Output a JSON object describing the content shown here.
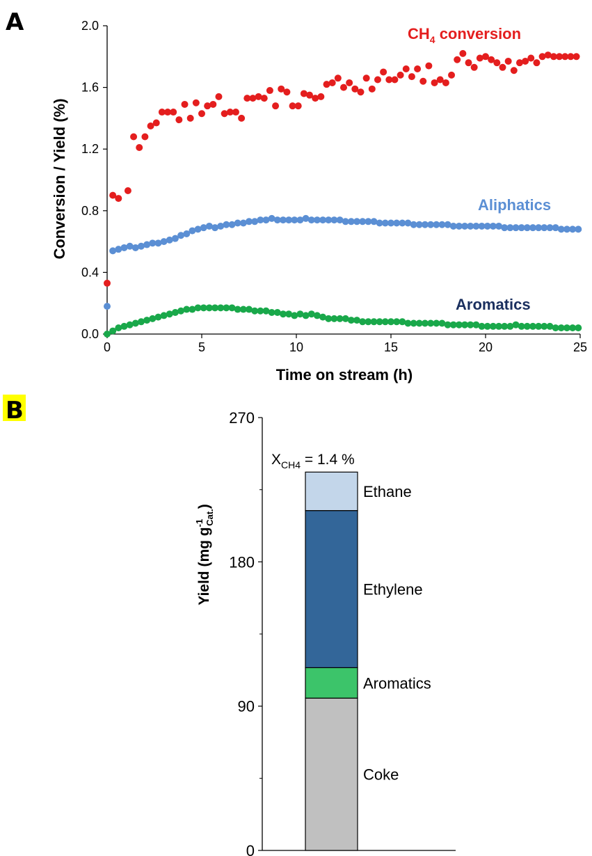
{
  "panels": {
    "a_label": "A",
    "b_label": "B"
  },
  "colors": {
    "ch4": "#e41e1e",
    "aliphatics": "#5b8fd4",
    "aromatics_series": "#19a84a",
    "aromatics_label": "#1a2f5e",
    "ethane": "#c3d6ea",
    "ethylene": "#336699",
    "aromatics_bar": "#3cc46a",
    "coke": "#c0c0c0",
    "highlight_b": "#ffff00"
  },
  "chart_data": [
    {
      "type": "scatter",
      "xlabel": "Time on stream (h)",
      "ylabel": "Conversion / Yield (%)",
      "xlim": [
        0,
        25
      ],
      "ylim": [
        0,
        2.0
      ],
      "xticks": [
        0,
        5,
        10,
        15,
        20,
        25
      ],
      "yticks": [
        "0.0",
        "0.4",
        "0.8",
        "1.2",
        "1.6",
        "2.0"
      ],
      "series": [
        {
          "name": "CH4 conversion",
          "name_main": "CH",
          "name_sub": "4",
          "name_rest": " conversion",
          "color": "#e41e1e",
          "x": [
            0,
            0.3,
            0.6,
            1.1,
            1.4,
            1.7,
            2.0,
            2.3,
            2.6,
            2.9,
            3.2,
            3.5,
            3.8,
            4.1,
            4.4,
            4.7,
            5.0,
            5.3,
            5.6,
            5.9,
            6.2,
            6.5,
            6.8,
            7.1,
            7.4,
            7.7,
            8.0,
            8.3,
            8.6,
            8.9,
            9.2,
            9.5,
            9.8,
            10.1,
            10.4,
            10.7,
            11.0,
            11.3,
            11.6,
            11.9,
            12.2,
            12.5,
            12.8,
            13.1,
            13.4,
            13.7,
            14.0,
            14.3,
            14.6,
            14.9,
            15.2,
            15.5,
            15.8,
            16.1,
            16.4,
            16.7,
            17.0,
            17.3,
            17.6,
            17.9,
            18.2,
            18.5,
            18.8,
            19.1,
            19.4,
            19.7,
            20.0,
            20.3,
            20.6,
            20.9,
            21.2,
            21.5,
            21.8,
            22.1,
            22.4,
            22.7,
            23.0,
            23.3,
            23.6,
            23.9,
            24.2,
            24.5,
            24.8
          ],
          "values": [
            0.33,
            0.9,
            0.88,
            0.93,
            1.28,
            1.21,
            1.28,
            1.35,
            1.37,
            1.44,
            1.44,
            1.44,
            1.39,
            1.49,
            1.4,
            1.5,
            1.43,
            1.48,
            1.49,
            1.54,
            1.43,
            1.44,
            1.44,
            1.4,
            1.53,
            1.53,
            1.54,
            1.53,
            1.58,
            1.48,
            1.59,
            1.57,
            1.48,
            1.48,
            1.56,
            1.55,
            1.53,
            1.54,
            1.62,
            1.63,
            1.66,
            1.6,
            1.63,
            1.59,
            1.57,
            1.66,
            1.59,
            1.65,
            1.7,
            1.65,
            1.65,
            1.68,
            1.72,
            1.67,
            1.72,
            1.64,
            1.74,
            1.63,
            1.65,
            1.63,
            1.68,
            1.78,
            1.82,
            1.76,
            1.73,
            1.79,
            1.8,
            1.78,
            1.76,
            1.73,
            1.77,
            1.71,
            1.76,
            1.77,
            1.79,
            1.76,
            1.8,
            1.81,
            1.8,
            1.8,
            1.8,
            1.8,
            1.8
          ]
        },
        {
          "name": "Aliphatics",
          "color": "#5b8fd4",
          "x": [
            0,
            0.3,
            0.6,
            0.9,
            1.2,
            1.5,
            1.8,
            2.1,
            2.4,
            2.7,
            3.0,
            3.3,
            3.6,
            3.9,
            4.2,
            4.5,
            4.8,
            5.1,
            5.4,
            5.7,
            6.0,
            6.3,
            6.6,
            6.9,
            7.2,
            7.5,
            7.8,
            8.1,
            8.4,
            8.7,
            9.0,
            9.3,
            9.6,
            9.9,
            10.2,
            10.5,
            10.8,
            11.1,
            11.4,
            11.7,
            12.0,
            12.3,
            12.6,
            12.9,
            13.2,
            13.5,
            13.8,
            14.1,
            14.4,
            14.7,
            15.0,
            15.3,
            15.6,
            15.9,
            16.2,
            16.5,
            16.8,
            17.1,
            17.4,
            17.7,
            18.0,
            18.3,
            18.6,
            18.9,
            19.2,
            19.5,
            19.8,
            20.1,
            20.4,
            20.7,
            21.0,
            21.3,
            21.6,
            21.9,
            22.2,
            22.5,
            22.8,
            23.1,
            23.4,
            23.7,
            24.0,
            24.3,
            24.6,
            24.9
          ],
          "values": [
            0.18,
            0.54,
            0.55,
            0.56,
            0.57,
            0.56,
            0.57,
            0.58,
            0.59,
            0.59,
            0.6,
            0.61,
            0.62,
            0.64,
            0.65,
            0.67,
            0.68,
            0.69,
            0.7,
            0.69,
            0.7,
            0.71,
            0.71,
            0.72,
            0.72,
            0.73,
            0.73,
            0.74,
            0.74,
            0.75,
            0.74,
            0.74,
            0.74,
            0.74,
            0.74,
            0.75,
            0.74,
            0.74,
            0.74,
            0.74,
            0.74,
            0.74,
            0.73,
            0.73,
            0.73,
            0.73,
            0.73,
            0.73,
            0.72,
            0.72,
            0.72,
            0.72,
            0.72,
            0.72,
            0.71,
            0.71,
            0.71,
            0.71,
            0.71,
            0.71,
            0.71,
            0.7,
            0.7,
            0.7,
            0.7,
            0.7,
            0.7,
            0.7,
            0.7,
            0.7,
            0.69,
            0.69,
            0.69,
            0.69,
            0.69,
            0.69,
            0.69,
            0.69,
            0.69,
            0.69,
            0.68,
            0.68,
            0.68,
            0.68
          ]
        },
        {
          "name": "Aromatics",
          "color": "#19a84a",
          "label_color": "#1a2f5e",
          "x": [
            0,
            0.3,
            0.6,
            0.9,
            1.2,
            1.5,
            1.8,
            2.1,
            2.4,
            2.7,
            3.0,
            3.3,
            3.6,
            3.9,
            4.2,
            4.5,
            4.8,
            5.1,
            5.4,
            5.7,
            6.0,
            6.3,
            6.6,
            6.9,
            7.2,
            7.5,
            7.8,
            8.1,
            8.4,
            8.7,
            9.0,
            9.3,
            9.6,
            9.9,
            10.2,
            10.5,
            10.8,
            11.1,
            11.4,
            11.7,
            12.0,
            12.3,
            12.6,
            12.9,
            13.2,
            13.5,
            13.8,
            14.1,
            14.4,
            14.7,
            15.0,
            15.3,
            15.6,
            15.9,
            16.2,
            16.5,
            16.8,
            17.1,
            17.4,
            17.7,
            18.0,
            18.3,
            18.6,
            18.9,
            19.2,
            19.5,
            19.8,
            20.1,
            20.4,
            20.7,
            21.0,
            21.3,
            21.6,
            21.9,
            22.2,
            22.5,
            22.8,
            23.1,
            23.4,
            23.7,
            24.0,
            24.3,
            24.6,
            24.9
          ],
          "values": [
            0.0,
            0.02,
            0.04,
            0.05,
            0.06,
            0.07,
            0.08,
            0.09,
            0.1,
            0.11,
            0.12,
            0.13,
            0.14,
            0.15,
            0.16,
            0.16,
            0.17,
            0.17,
            0.17,
            0.17,
            0.17,
            0.17,
            0.17,
            0.16,
            0.16,
            0.16,
            0.15,
            0.15,
            0.15,
            0.14,
            0.14,
            0.13,
            0.13,
            0.12,
            0.13,
            0.12,
            0.13,
            0.12,
            0.11,
            0.1,
            0.1,
            0.1,
            0.1,
            0.09,
            0.09,
            0.08,
            0.08,
            0.08,
            0.08,
            0.08,
            0.08,
            0.08,
            0.08,
            0.07,
            0.07,
            0.07,
            0.07,
            0.07,
            0.07,
            0.07,
            0.06,
            0.06,
            0.06,
            0.06,
            0.06,
            0.06,
            0.05,
            0.05,
            0.05,
            0.05,
            0.05,
            0.05,
            0.06,
            0.05,
            0.05,
            0.05,
            0.05,
            0.05,
            0.05,
            0.04,
            0.04,
            0.04,
            0.04,
            0.04
          ]
        }
      ]
    },
    {
      "type": "bar",
      "stacked": true,
      "ylabel_main": "Yield (mg g",
      "ylabel_sup": "-1",
      "ylabel_sub": "Cat.",
      "ylabel_close": ")",
      "ylim": [
        0,
        270
      ],
      "yticks": [
        0,
        90,
        180,
        270
      ],
      "annotation_main": "X",
      "annotation_sub": "CH4",
      "annotation_rest": " = 1.4 %",
      "segments": [
        {
          "name": "Coke",
          "value": 95,
          "color": "#c0c0c0"
        },
        {
          "name": "Aromatics",
          "value": 19,
          "color": "#3cc46a"
        },
        {
          "name": "Ethylene",
          "value": 98,
          "color": "#336699"
        },
        {
          "name": "Ethane",
          "value": 24,
          "color": "#c3d6ea"
        }
      ]
    }
  ]
}
